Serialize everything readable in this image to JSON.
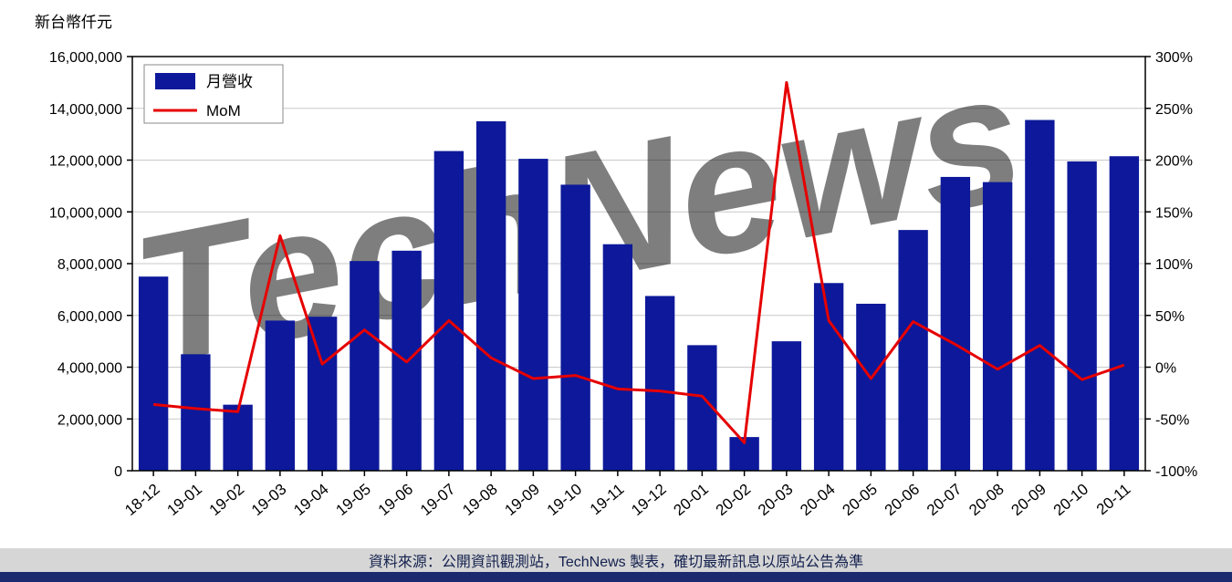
{
  "page": {
    "footer_text": "資料來源：公開資訊觀測站，TechNews 製表，確切最新訊息以原站公告為準"
  },
  "watermark": {
    "text": "TechNews"
  },
  "colors": {
    "bar": "#0d199a",
    "line": "#e60000",
    "watermark": "#edb0b6",
    "grid": "#c9c9c9",
    "frame": "#000000",
    "footer_bg": "#d6d6d6",
    "footer_strip": "#1b2a6e",
    "footer_text": "#13204d"
  },
  "chart_data": {
    "type": "bar+line",
    "title": "",
    "categories": [
      "18-12",
      "19-01",
      "19-02",
      "19-03",
      "19-04",
      "19-05",
      "19-06",
      "19-07",
      "19-08",
      "19-09",
      "19-10",
      "19-11",
      "19-12",
      "20-01",
      "20-02",
      "20-03",
      "20-04",
      "20-05",
      "20-06",
      "20-07",
      "20-08",
      "20-09",
      "20-10",
      "20-11"
    ],
    "series": [
      {
        "name": "月營收",
        "type": "bar",
        "axis": "left",
        "values": [
          7500000,
          4500000,
          2550000,
          5800000,
          5950000,
          8100000,
          8500000,
          12350000,
          13500000,
          12050000,
          11050000,
          8750000,
          6750000,
          4850000,
          1300000,
          5000000,
          7250000,
          6450000,
          9300000,
          11350000,
          11150000,
          13550000,
          11950000,
          12150000
        ]
      },
      {
        "name": "MoM",
        "type": "line",
        "axis": "right",
        "unit": "%",
        "values": [
          -36,
          -40,
          -43,
          127,
          3,
          36,
          5,
          45,
          9,
          -11,
          -8,
          -21,
          -23,
          -28,
          -73,
          275,
          45,
          -11,
          44,
          22,
          -2,
          21,
          -12,
          2
        ]
      }
    ],
    "y_left": {
      "unit_label": "新台幣仟元",
      "min": 0,
      "max": 16000000,
      "tick_step": 2000000
    },
    "y_right": {
      "min": -100,
      "max": 300,
      "tick_step": 50,
      "format": "percent"
    },
    "legend_position": "top-left",
    "grid": true
  }
}
